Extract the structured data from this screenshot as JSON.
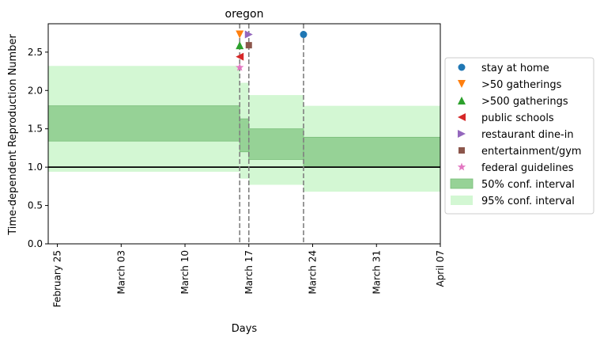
{
  "chart_data": {
    "type": "step-area",
    "title": "oregon",
    "xlabel": "Days",
    "ylabel": "Time-dependent Reproduction Number",
    "x_ticks": [
      "February 25",
      "March 03",
      "March 10",
      "March 17",
      "March 24",
      "March 31",
      "April 07"
    ],
    "x_range": [
      "2020-02-24",
      "2020-04-07"
    ],
    "y_ticks": [
      "0.0",
      "0.5",
      "1.0",
      "1.5",
      "2.0",
      "2.5"
    ],
    "ylim": [
      0,
      2.87
    ],
    "reference_line": 1.0,
    "intervals": [
      {
        "start": "2020-02-24",
        "end": "2020-03-16",
        "ci50": [
          1.34,
          1.8
        ],
        "ci95": [
          0.94,
          2.32
        ]
      },
      {
        "start": "2020-03-16",
        "end": "2020-03-17",
        "ci50": [
          1.2,
          1.63
        ],
        "ci95": [
          0.85,
          2.1
        ]
      },
      {
        "start": "2020-03-17",
        "end": "2020-03-23",
        "ci50": [
          1.1,
          1.5
        ],
        "ci95": [
          0.77,
          1.94
        ]
      },
      {
        "start": "2020-03-23",
        "end": "2020-04-07",
        "ci50": [
          1.0,
          1.39
        ],
        "ci95": [
          0.68,
          1.8
        ]
      }
    ],
    "interventions": [
      {
        "name": "stay at home",
        "date": "2020-03-23",
        "y": 2.73,
        "marker": "circle",
        "color": "#1f77b4"
      },
      {
        "name": ">50 gatherings",
        "date": "2020-03-16",
        "y": 2.73,
        "marker": "triangle-down",
        "color": "#ff7f0e"
      },
      {
        "name": ">500 gatherings",
        "date": "2020-03-16",
        "y": 2.59,
        "marker": "triangle-up",
        "color": "#2ca02c"
      },
      {
        "name": "public schools",
        "date": "2020-03-16",
        "y": 2.44,
        "marker": "triangle-left",
        "color": "#d62728"
      },
      {
        "name": "restaurant dine-in",
        "date": "2020-03-17",
        "y": 2.73,
        "marker": "triangle-right",
        "color": "#9467bd"
      },
      {
        "name": "entertainment/gym",
        "date": "2020-03-17",
        "y": 2.59,
        "marker": "square",
        "color": "#8c564b"
      },
      {
        "name": "federal guidelines",
        "date": "2020-03-16",
        "y": 2.3,
        "marker": "star",
        "color": "#e377c2"
      }
    ],
    "vlines": [
      "2020-03-16",
      "2020-03-17",
      "2020-03-23"
    ],
    "legend": {
      "placement": "right",
      "entries": [
        {
          "label": "stay at home",
          "marker": "circle",
          "color": "#1f77b4"
        },
        {
          "label": ">50 gatherings",
          "marker": "triangle-down",
          "color": "#ff7f0e"
        },
        {
          "label": ">500 gatherings",
          "marker": "triangle-up",
          "color": "#2ca02c"
        },
        {
          "label": "public schools",
          "marker": "triangle-left",
          "color": "#d62728"
        },
        {
          "label": "restaurant dine-in",
          "marker": "triangle-right",
          "color": "#9467bd"
        },
        {
          "label": "entertainment/gym",
          "marker": "square",
          "color": "#8c564b"
        },
        {
          "label": "federal guidelines",
          "marker": "star",
          "color": "#e377c2"
        },
        {
          "label": "50% conf. interval",
          "marker": "patch",
          "color": "#96d296"
        },
        {
          "label": "95% conf. interval",
          "marker": "patch",
          "color": "#d3f7d3"
        }
      ]
    },
    "colors": {
      "ci50_fill": "#96d296",
      "ci50_edge": "#78bd78",
      "ci95_fill": "#d3f7d3",
      "vline": "#7f7f7f",
      "reference": "#000000"
    }
  }
}
